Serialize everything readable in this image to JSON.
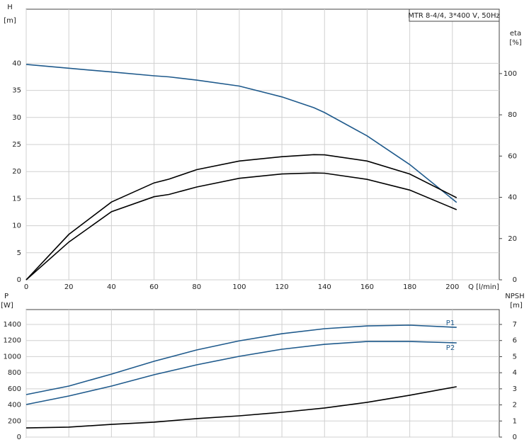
{
  "chart_data": [
    {
      "type": "line",
      "legend_text": "MTR 8-4/4, 3*400 V, 50Hz",
      "xlabel": "Q [l/min]",
      "ylabel": [
        "H",
        "[m]"
      ],
      "y2label": [
        "eta",
        "[%]"
      ],
      "x": [
        0,
        20,
        40,
        60,
        67,
        80,
        100,
        120,
        135,
        140,
        160,
        180,
        202
      ],
      "xlim": [
        0,
        222
      ],
      "xticks": [
        0,
        20,
        40,
        60,
        80,
        100,
        120,
        140,
        160,
        180,
        200
      ],
      "ylim": [
        0,
        50
      ],
      "yticks": [
        0,
        5,
        10,
        15,
        20,
        25,
        30,
        35,
        40
      ],
      "y2lim": [
        0,
        131.2
      ],
      "y2ticks": [
        0,
        20,
        40,
        60,
        80,
        100
      ],
      "grid": true,
      "series": [
        {
          "color": "#1f5a8c",
          "values": [
            39.8,
            39.1,
            38.4,
            37.7,
            37.5,
            36.9,
            35.8,
            33.8,
            31.8,
            30.9,
            26.6,
            21.3,
            14.3
          ]
        },
        {
          "color": "#000000",
          "axis": "y2",
          "values": [
            0,
            22,
            37.7,
            47,
            48.8,
            53.4,
            57.6,
            59.7,
            60.7,
            60.6,
            57.6,
            51.3,
            39.8
          ]
        },
        {
          "color": "#000000",
          "axis": "y2",
          "values": [
            0,
            18.3,
            33,
            40.3,
            41.4,
            45,
            49.2,
            51.3,
            51.8,
            51.7,
            48.7,
            43.5,
            34
          ]
        }
      ]
    },
    {
      "type": "line",
      "ylabel": [
        "P",
        "[W]"
      ],
      "y2label": [
        "NPSH",
        "[m]"
      ],
      "x": [
        0,
        20,
        40,
        60,
        80,
        100,
        120,
        140,
        160,
        180,
        202
      ],
      "xlim": [
        0,
        222
      ],
      "ylim": [
        0,
        1585
      ],
      "yticks": [
        0,
        200,
        400,
        600,
        800,
        1000,
        1200,
        1400
      ],
      "y2lim": [
        0,
        7.925
      ],
      "y2ticks": [
        0,
        1,
        2,
        3,
        4,
        5,
        6,
        7
      ],
      "grid": true,
      "annotations": [
        "P1",
        "P2"
      ],
      "series": [
        {
          "color": "#1f5a8c",
          "values": [
            528,
            634,
            783,
            942,
            1083,
            1197,
            1285,
            1347,
            1382,
            1391,
            1364
          ]
        },
        {
          "color": "#1f5a8c",
          "values": [
            405,
            511,
            634,
            775,
            898,
            1004,
            1092,
            1153,
            1188,
            1188,
            1171
          ]
        },
        {
          "color": "#000000",
          "axis": "y2",
          "values": [
            0.57,
            0.62,
            0.79,
            0.93,
            1.15,
            1.32,
            1.54,
            1.81,
            2.16,
            2.6,
            3.13
          ]
        }
      ]
    }
  ]
}
